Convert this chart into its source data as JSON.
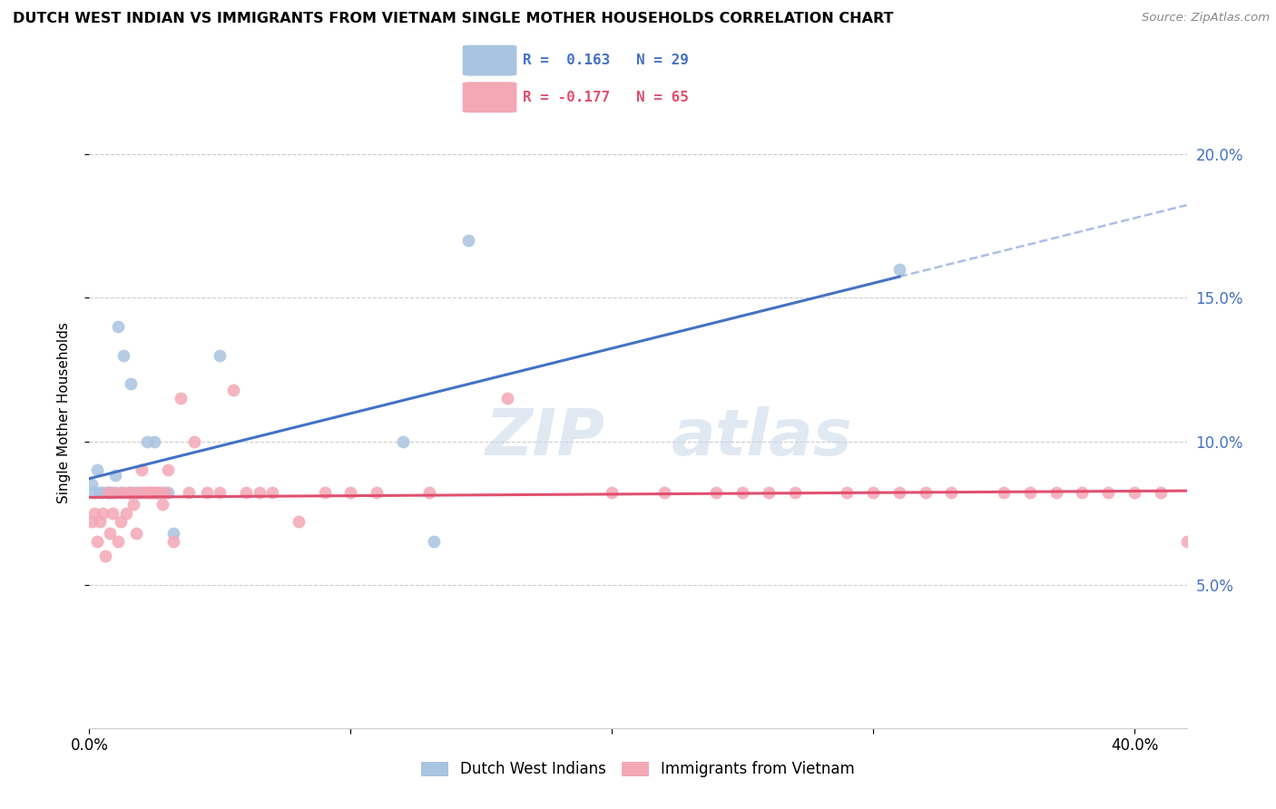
{
  "title": "DUTCH WEST INDIAN VS IMMIGRANTS FROM VIETNAM SINGLE MOTHER HOUSEHOLDS CORRELATION CHART",
  "source": "Source: ZipAtlas.com",
  "ylabel": "Single Mother Households",
  "r1": 0.163,
  "n1": 29,
  "r2": -0.177,
  "n2": 65,
  "xlim": [
    0.0,
    0.42
  ],
  "ylim": [
    0.0,
    0.22
  ],
  "y_ticks": [
    0.05,
    0.1,
    0.15,
    0.2
  ],
  "x_ticks": [
    0.0,
    0.1,
    0.2,
    0.3,
    0.4
  ],
  "legend1_label": "Dutch West Indians",
  "legend2_label": "Immigrants from Vietnam",
  "blue_color": "#a8c4e0",
  "pink_color": "#f4a7b5",
  "blue_line_color": "#4472c4",
  "pink_line_color": "#e05070",
  "blue_points_x": [
    0.001,
    0.002,
    0.003,
    0.004,
    0.005,
    0.007,
    0.008,
    0.009,
    0.01,
    0.011,
    0.012,
    0.013,
    0.015,
    0.016,
    0.017,
    0.018,
    0.02,
    0.022,
    0.023,
    0.025,
    0.026,
    0.028,
    0.03,
    0.032,
    0.05,
    0.12,
    0.132,
    0.145,
    0.31
  ],
  "blue_points_y": [
    0.085,
    0.082,
    0.09,
    0.082,
    0.082,
    0.082,
    0.082,
    0.082,
    0.088,
    0.14,
    0.082,
    0.13,
    0.082,
    0.12,
    0.082,
    0.082,
    0.082,
    0.1,
    0.082,
    0.1,
    0.082,
    0.082,
    0.082,
    0.068,
    0.13,
    0.1,
    0.065,
    0.17,
    0.16
  ],
  "pink_points_x": [
    0.001,
    0.002,
    0.003,
    0.004,
    0.005,
    0.006,
    0.007,
    0.008,
    0.009,
    0.01,
    0.011,
    0.012,
    0.013,
    0.014,
    0.015,
    0.016,
    0.017,
    0.018,
    0.019,
    0.02,
    0.021,
    0.022,
    0.023,
    0.024,
    0.025,
    0.026,
    0.027,
    0.028,
    0.029,
    0.03,
    0.032,
    0.035,
    0.038,
    0.04,
    0.045,
    0.05,
    0.055,
    0.06,
    0.065,
    0.07,
    0.08,
    0.09,
    0.1,
    0.11,
    0.13,
    0.16,
    0.2,
    0.22,
    0.24,
    0.27,
    0.29,
    0.3,
    0.31,
    0.32,
    0.33,
    0.35,
    0.36,
    0.37,
    0.38,
    0.39,
    0.4,
    0.41,
    0.42,
    0.25,
    0.26
  ],
  "pink_points_y": [
    0.072,
    0.075,
    0.065,
    0.072,
    0.075,
    0.06,
    0.082,
    0.068,
    0.075,
    0.082,
    0.065,
    0.072,
    0.082,
    0.075,
    0.082,
    0.082,
    0.078,
    0.068,
    0.082,
    0.09,
    0.082,
    0.082,
    0.082,
    0.082,
    0.082,
    0.082,
    0.082,
    0.078,
    0.082,
    0.09,
    0.065,
    0.115,
    0.082,
    0.1,
    0.082,
    0.082,
    0.118,
    0.082,
    0.082,
    0.082,
    0.072,
    0.082,
    0.082,
    0.082,
    0.082,
    0.115,
    0.082,
    0.082,
    0.082,
    0.082,
    0.082,
    0.082,
    0.082,
    0.082,
    0.082,
    0.082,
    0.082,
    0.082,
    0.082,
    0.082,
    0.082,
    0.082,
    0.065,
    0.082,
    0.082
  ]
}
